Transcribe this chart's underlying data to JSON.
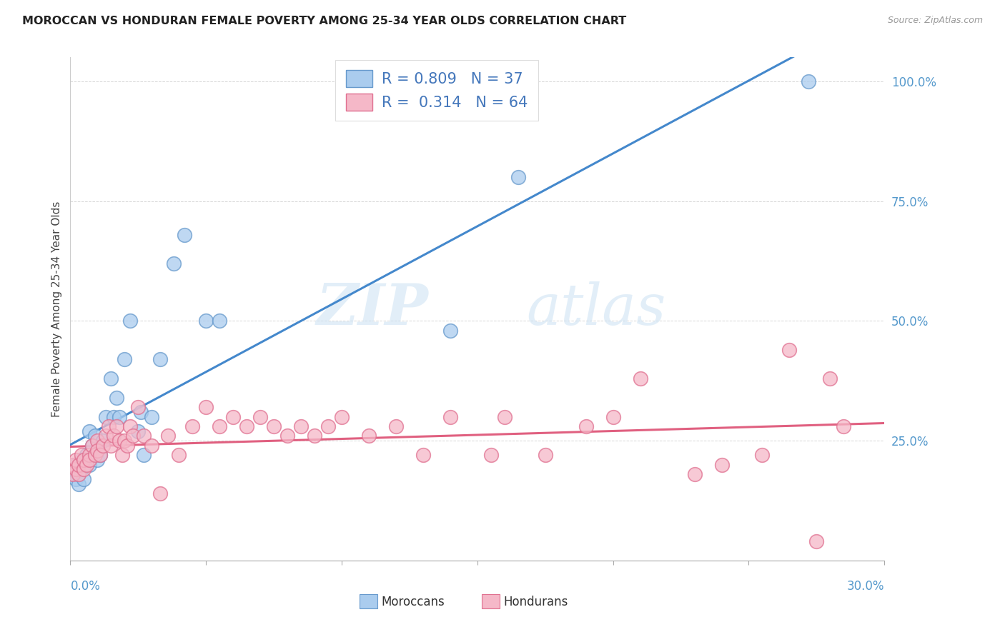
{
  "title": "MOROCCAN VS HONDURAN FEMALE POVERTY AMONG 25-34 YEAR OLDS CORRELATION CHART",
  "source": "Source: ZipAtlas.com",
  "ylabel": "Female Poverty Among 25-34 Year Olds",
  "xlim": [
    0.0,
    0.3
  ],
  "ylim": [
    0.0,
    1.05
  ],
  "moroccan_R": "0.809",
  "moroccan_N": "37",
  "honduran_R": "0.314",
  "honduran_N": "64",
  "moroccan_color": "#aaccee",
  "moroccan_edge_color": "#6699cc",
  "moroccan_line_color": "#4488cc",
  "honduran_color": "#f5b8c8",
  "honduran_edge_color": "#e07090",
  "honduran_line_color": "#e06080",
  "legend_text_color": "#4477bb",
  "axis_label_color": "#5599cc",
  "background_color": "#ffffff",
  "grid_color": "#cccccc",
  "moroccan_x": [
    0.001,
    0.001,
    0.002,
    0.002,
    0.003,
    0.003,
    0.004,
    0.004,
    0.005,
    0.005,
    0.006,
    0.007,
    0.007,
    0.008,
    0.009,
    0.01,
    0.011,
    0.012,
    0.013,
    0.015,
    0.016,
    0.017,
    0.018,
    0.02,
    0.022,
    0.025,
    0.026,
    0.027,
    0.03,
    0.033,
    0.038,
    0.042,
    0.05,
    0.055,
    0.14,
    0.165,
    0.272
  ],
  "moroccan_y": [
    0.18,
    0.19,
    0.17,
    0.2,
    0.16,
    0.18,
    0.19,
    0.21,
    0.17,
    0.2,
    0.22,
    0.2,
    0.27,
    0.24,
    0.26,
    0.21,
    0.22,
    0.25,
    0.3,
    0.38,
    0.3,
    0.34,
    0.3,
    0.42,
    0.5,
    0.27,
    0.31,
    0.22,
    0.3,
    0.42,
    0.62,
    0.68,
    0.5,
    0.5,
    0.48,
    0.8,
    1.0
  ],
  "honduran_x": [
    0.001,
    0.001,
    0.002,
    0.002,
    0.003,
    0.003,
    0.004,
    0.005,
    0.005,
    0.006,
    0.007,
    0.007,
    0.008,
    0.009,
    0.01,
    0.01,
    0.011,
    0.012,
    0.013,
    0.014,
    0.015,
    0.016,
    0.017,
    0.018,
    0.019,
    0.02,
    0.021,
    0.022,
    0.023,
    0.025,
    0.027,
    0.03,
    0.033,
    0.036,
    0.04,
    0.045,
    0.05,
    0.055,
    0.06,
    0.065,
    0.07,
    0.075,
    0.08,
    0.085,
    0.09,
    0.095,
    0.1,
    0.11,
    0.12,
    0.13,
    0.14,
    0.155,
    0.16,
    0.175,
    0.19,
    0.2,
    0.21,
    0.23,
    0.24,
    0.255,
    0.265,
    0.275,
    0.28,
    0.285
  ],
  "honduran_y": [
    0.18,
    0.2,
    0.19,
    0.21,
    0.18,
    0.2,
    0.22,
    0.19,
    0.21,
    0.2,
    0.22,
    0.21,
    0.24,
    0.22,
    0.25,
    0.23,
    0.22,
    0.24,
    0.26,
    0.28,
    0.24,
    0.26,
    0.28,
    0.25,
    0.22,
    0.25,
    0.24,
    0.28,
    0.26,
    0.32,
    0.26,
    0.24,
    0.14,
    0.26,
    0.22,
    0.28,
    0.32,
    0.28,
    0.3,
    0.28,
    0.3,
    0.28,
    0.26,
    0.28,
    0.26,
    0.28,
    0.3,
    0.26,
    0.28,
    0.22,
    0.3,
    0.22,
    0.3,
    0.22,
    0.28,
    0.3,
    0.38,
    0.18,
    0.2,
    0.22,
    0.44,
    0.04,
    0.38,
    0.28
  ],
  "watermark_zip": "ZIP",
  "watermark_atlas": "atlas"
}
